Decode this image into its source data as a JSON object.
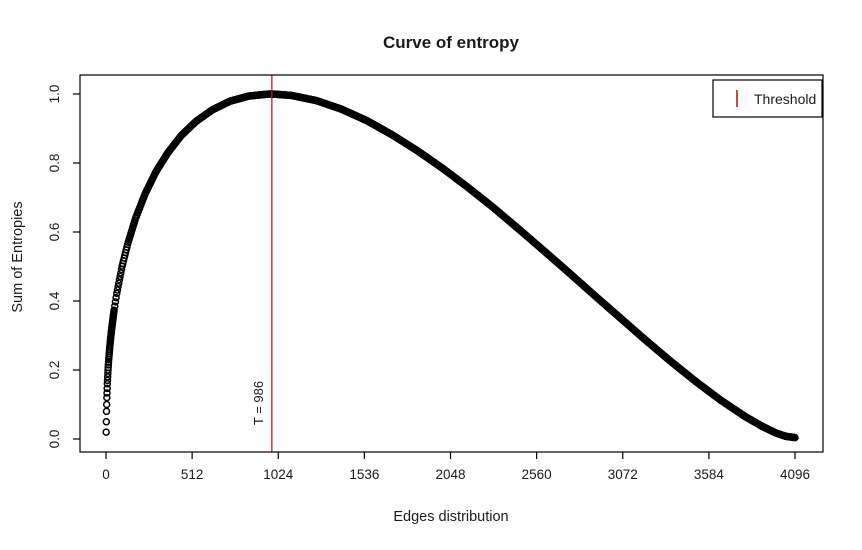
{
  "chart_data": {
    "type": "scatter",
    "title": "Curve of entropy",
    "xlabel": "Edges distribution",
    "ylabel": "Sum of Entropies",
    "xlim": [
      0,
      4096
    ],
    "ylim": [
      0.0,
      1.0
    ],
    "x_ticks": [
      0,
      512,
      1024,
      1536,
      2048,
      2560,
      3072,
      3584,
      4096
    ],
    "y_ticks": [
      "0.0",
      "0.2",
      "0.4",
      "0.6",
      "0.8",
      "1.0"
    ],
    "grid": false,
    "marker": "open-circle",
    "marker_color": "#000000",
    "legend_position": "topright",
    "threshold": {
      "value": 986,
      "label": "T = 986",
      "legend_label": "Threshold",
      "color": "#b22222"
    },
    "series": [
      {
        "name": "Sum of Entropies",
        "points": [
          [
            1,
            0.02
          ],
          [
            2,
            0.05
          ],
          [
            3,
            0.08
          ],
          [
            5,
            0.12
          ],
          [
            8,
            0.16
          ],
          [
            12,
            0.2
          ],
          [
            16,
            0.23
          ],
          [
            24,
            0.275
          ],
          [
            32,
            0.312
          ],
          [
            48,
            0.373
          ],
          [
            64,
            0.422
          ],
          [
            96,
            0.501
          ],
          [
            128,
            0.564
          ],
          [
            176,
            0.64
          ],
          [
            232,
            0.71
          ],
          [
            296,
            0.774
          ],
          [
            368,
            0.83
          ],
          [
            448,
            0.88
          ],
          [
            536,
            0.921
          ],
          [
            632,
            0.954
          ],
          [
            736,
            0.979
          ],
          [
            848,
            0.994
          ],
          [
            968,
            1.0
          ],
          [
            986,
            1.0
          ],
          [
            1100,
            0.996
          ],
          [
            1250,
            0.981
          ],
          [
            1400,
            0.956
          ],
          [
            1550,
            0.923
          ],
          [
            1700,
            0.882
          ],
          [
            1850,
            0.836
          ],
          [
            2000,
            0.785
          ],
          [
            2150,
            0.73
          ],
          [
            2300,
            0.672
          ],
          [
            2450,
            0.61
          ],
          [
            2600,
            0.547
          ],
          [
            2750,
            0.483
          ],
          [
            2900,
            0.418
          ],
          [
            3050,
            0.354
          ],
          [
            3200,
            0.29
          ],
          [
            3350,
            0.228
          ],
          [
            3500,
            0.169
          ],
          [
            3650,
            0.114
          ],
          [
            3800,
            0.065
          ],
          [
            3900,
            0.037
          ],
          [
            3980,
            0.018
          ],
          [
            4040,
            0.008
          ],
          [
            4096,
            0.004
          ]
        ]
      }
    ]
  }
}
